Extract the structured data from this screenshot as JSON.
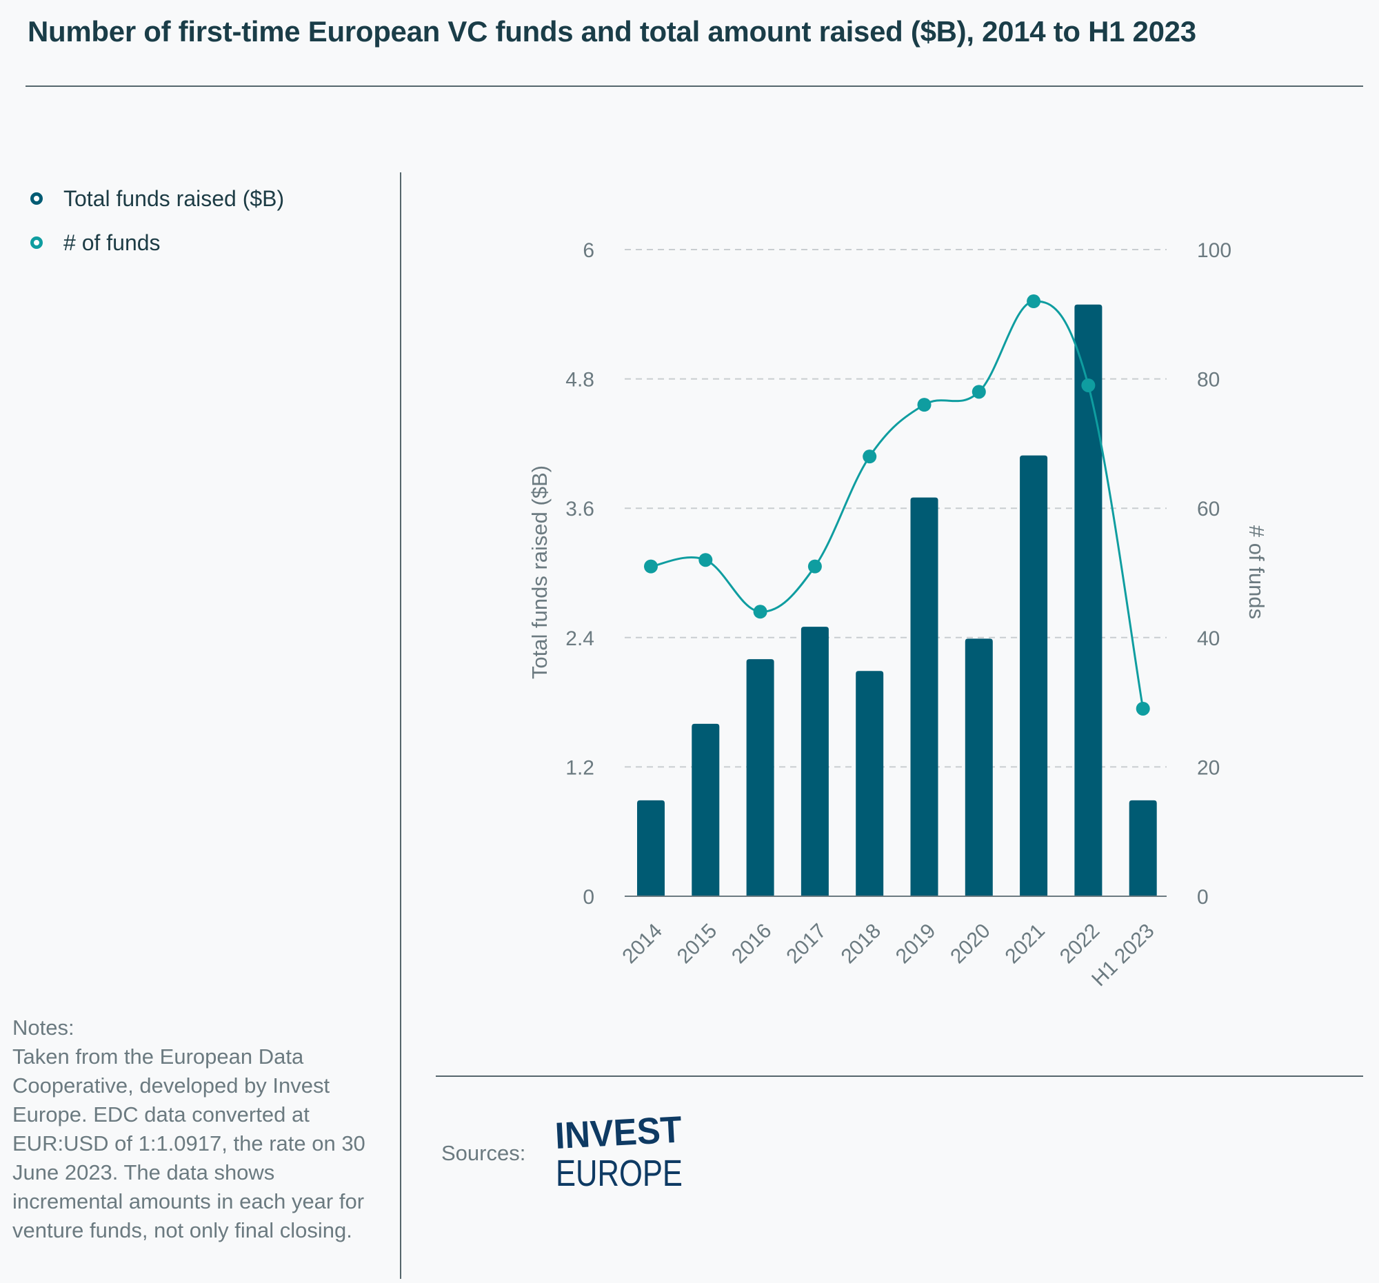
{
  "title": "Number of first-time European VC funds and total amount raised ($B), 2014 to H1 2023",
  "legend": [
    {
      "label": "Total funds raised ($B)",
      "color": "#005b73"
    },
    {
      "label": "# of funds",
      "color": "#0f9da0"
    }
  ],
  "notes": {
    "heading": "Notes:",
    "body": "Taken from the European Data Cooperative, developed by Invest Europe. EDC data converted at EUR:USD of 1:1.0917, the rate on 30 June 2023. The data shows incremental amounts in each year for venture funds, not only final closing."
  },
  "sources": {
    "label": "Sources:",
    "logo_line1": "INVEST",
    "logo_line2": "EUROPE"
  },
  "chart_data": {
    "type": "bar",
    "categories": [
      "2014",
      "2015",
      "2016",
      "2017",
      "2018",
      "2019",
      "2020",
      "2021",
      "2022",
      "H1 2023"
    ],
    "series": [
      {
        "name": "Total funds raised ($B)",
        "type": "bar",
        "axis": "left",
        "color": "#005b73",
        "values": [
          0.89,
          1.6,
          2.2,
          2.5,
          2.09,
          3.7,
          2.39,
          4.09,
          5.49,
          0.89
        ]
      },
      {
        "name": "# of funds",
        "type": "line",
        "axis": "right",
        "color": "#0f9da0",
        "values": [
          51,
          52,
          44,
          51,
          68,
          76,
          78,
          92,
          79,
          29
        ]
      }
    ],
    "ylabel": "Total funds raised ($B)",
    "y2label": "# of funds",
    "ylim": [
      0,
      6
    ],
    "y2lim": [
      0,
      100
    ],
    "yticks": [
      "0",
      "1.2",
      "2.4",
      "3.6",
      "4.8",
      "6"
    ],
    "y2ticks": [
      "0",
      "20",
      "40",
      "60",
      "80",
      "100"
    ],
    "grid": true,
    "legend_position": "top-left"
  }
}
